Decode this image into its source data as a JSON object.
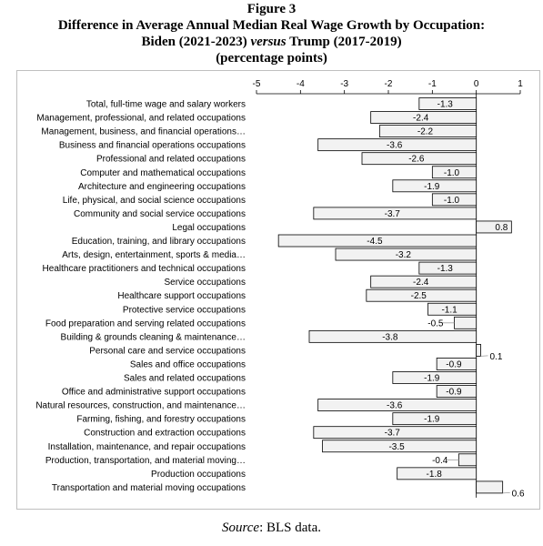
{
  "figure_label": "Figure 3",
  "title_line1": "Difference in Average Annual Median Real Wage Growth by Occupation:",
  "title_line2_prefix": "Biden (2021-2023)",
  "title_line2_versus": "versus",
  "title_line2_suffix": "Trump (2017-2019)",
  "title_line3": "(percentage points)",
  "source_word": "Source",
  "source_rest": ": BLS data.",
  "chart_data": {
    "type": "bar",
    "orientation": "horizontal",
    "title": "Difference in Average Annual Median Real Wage Growth by Occupation: Biden (2021-2023) versus Trump (2017-2019)",
    "units": "percentage points",
    "xlim": [
      -5,
      1
    ],
    "x_ticks": [
      -5,
      -4,
      -3,
      -2,
      -1,
      0,
      1
    ],
    "x_axis_position": "top",
    "grid": false,
    "legend": "none",
    "categories": [
      "Total, full-time wage and salary workers",
      "Management, professional, and related occupations",
      "Management, business, and financial operations…",
      "Business and financial operations occupations",
      "Professional and related occupations",
      "Computer and mathematical occupations",
      "Architecture and engineering occupations",
      "Life, physical, and social science occupations",
      "Community and social service occupations",
      "Legal occupations",
      "Education, training, and library occupations",
      "Arts, design, entertainment, sports & media…",
      "Healthcare practitioners and technical occupations",
      "Service occupations",
      "Healthcare support occupations",
      "Protective service occupations",
      "Food preparation and serving related occupations",
      "Building & grounds cleaning & maintenance…",
      "Personal care and service occupations",
      "Sales and office occupations",
      "Sales and related occupations",
      "Office and administrative support occupations",
      "Natural resources, construction, and maintenance…",
      "Farming, fishing, and forestry occupations",
      "Construction and extraction occupations",
      "Installation, maintenance, and repair occupations",
      "Production, transportation, and material moving…",
      "Production occupations",
      "Transportation and material moving occupations"
    ],
    "values": [
      -1.3,
      -2.4,
      -2.2,
      -3.6,
      -2.6,
      -1.0,
      -1.9,
      -1.0,
      -3.7,
      0.8,
      -4.5,
      -3.2,
      -1.3,
      -2.4,
      -2.5,
      -1.1,
      -0.5,
      -3.8,
      0.1,
      -0.9,
      -1.9,
      -0.9,
      -3.6,
      -1.9,
      -3.7,
      -3.5,
      -0.4,
      -1.8,
      0.6
    ],
    "labels": [
      "-1.3",
      "-2.4",
      "-2.2",
      "-3.6",
      "-2.6",
      "-1.0",
      "-1.9",
      "-1.0",
      "-3.7",
      "0.8",
      "-4.5",
      "-3.2",
      "-1.3",
      "-2.4",
      "-2.5",
      "-1.1",
      "-0.5",
      "-3.8",
      "0.1",
      "-0.9",
      "-1.9",
      "-0.9",
      "-3.6",
      "-1.9",
      "-3.7",
      "-3.5",
      "-0.4",
      "-1.8",
      "0.6"
    ],
    "bar_fill": "#f2f2f2",
    "bar_stroke": "#000000",
    "frame_color": "#bfbfbf"
  }
}
